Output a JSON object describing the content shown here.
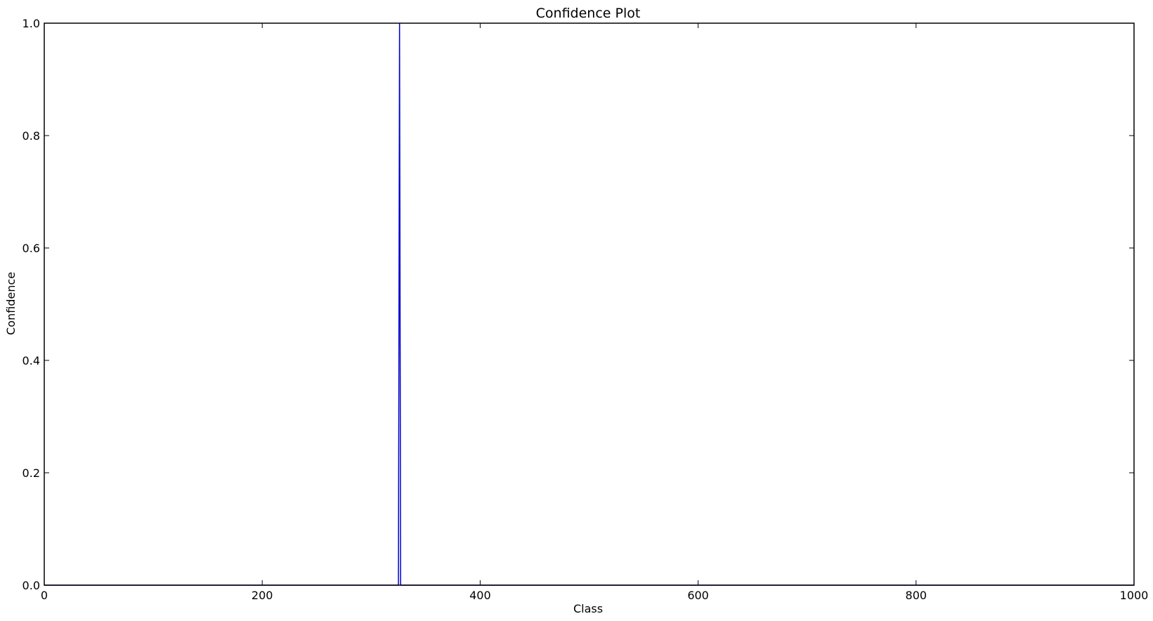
{
  "chart_data": {
    "type": "line",
    "title": "Confidence Plot",
    "xlabel": "Class",
    "ylabel": "Confidence",
    "xlim": [
      0,
      1000
    ],
    "ylim": [
      0,
      1
    ],
    "grid": false,
    "x_ticks": [
      0,
      200,
      400,
      600,
      800,
      1000
    ],
    "x_tick_labels": [
      "0",
      "200",
      "400",
      "600",
      "800",
      "1000"
    ],
    "y_ticks": [
      0,
      0.2,
      0.4,
      0.6,
      0.8,
      1.0
    ],
    "y_tick_labels": [
      "0.0",
      "0.2",
      "0.4",
      "0.6",
      "0.8",
      "1.0"
    ],
    "series": [
      {
        "color": "#0000cc",
        "x": [
          0,
          325,
          326,
          327,
          1000
        ],
        "y": [
          0,
          0,
          1.0,
          0,
          0
        ]
      }
    ]
  }
}
